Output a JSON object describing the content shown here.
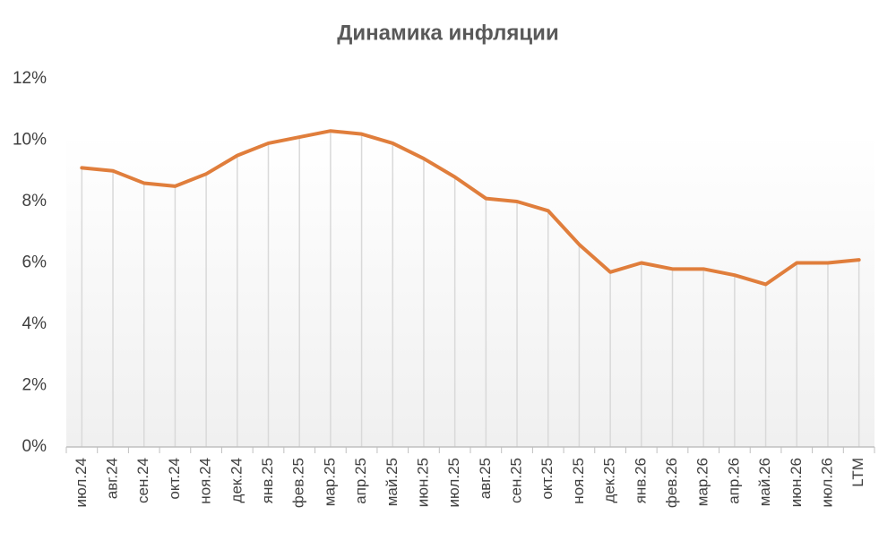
{
  "chart_data": {
    "type": "line",
    "title": "Динамика инфляции",
    "categories": [
      "июл.24",
      "авг.24",
      "сен.24",
      "окт.24",
      "ноя.24",
      "дек.24",
      "янв.25",
      "фев.25",
      "мар.25",
      "апр.25",
      "май.25",
      "июн.25",
      "июл.25",
      "авг.25",
      "сен.25",
      "окт.25",
      "ноя.25",
      "дек.25",
      "янв.26",
      "фев.26",
      "мар.26",
      "апр.26",
      "май.26",
      "июн.26",
      "июл.26",
      "LTM"
    ],
    "values": [
      9.1,
      9.0,
      8.6,
      8.5,
      8.9,
      9.5,
      9.9,
      10.1,
      10.3,
      10.2,
      9.9,
      9.4,
      8.8,
      8.1,
      8.0,
      7.7,
      6.6,
      5.7,
      6.0,
      5.8,
      5.8,
      5.6,
      5.3,
      6.0,
      6.0,
      6.1
    ],
    "color": "#e07e3c",
    "ylim": [
      0,
      12
    ],
    "yticks": [
      {
        "value": 0,
        "label": "0%"
      },
      {
        "value": 2,
        "label": "2%"
      },
      {
        "value": 4,
        "label": "4%"
      },
      {
        "value": 6,
        "label": "6%"
      },
      {
        "value": 8,
        "label": "8%"
      },
      {
        "value": 10,
        "label": "10%"
      },
      {
        "value": 12,
        "label": "12%"
      }
    ],
    "drop_lines": true
  }
}
